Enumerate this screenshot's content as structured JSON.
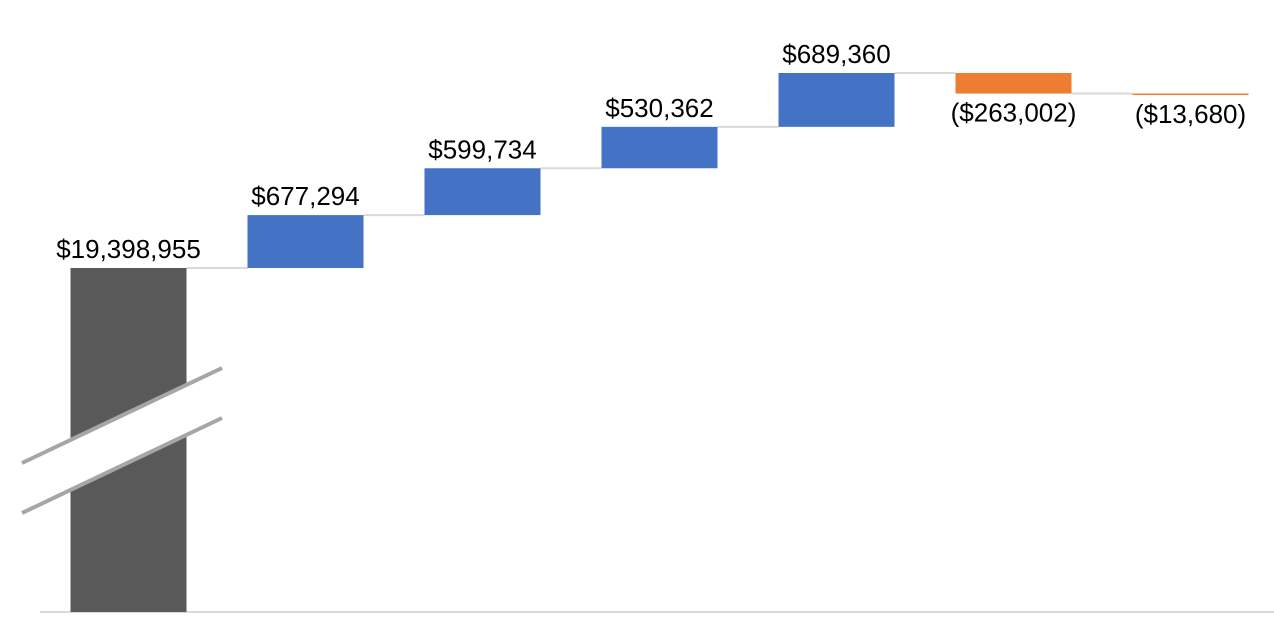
{
  "chart_data": {
    "type": "waterfall",
    "values": [
      19398955,
      677294,
      599734,
      530362,
      689360,
      -263002,
      -13680
    ],
    "value_labels": [
      "$19,398,955",
      "$677,294",
      "$599,734",
      "$530,362",
      "$689,360",
      "($263,002)",
      "($13,680)"
    ],
    "total_color": "#595959",
    "increase_color": "#4472c4",
    "decrease_color": "#ed7d31",
    "broken_axis": true
  }
}
